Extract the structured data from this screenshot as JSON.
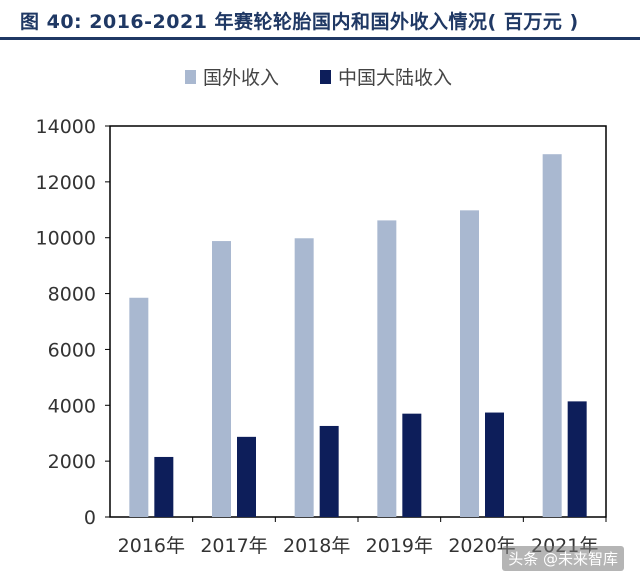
{
  "title": "图  40: 2016-2021 年赛轮轮胎国内和国外收入情况( 百万元 )",
  "watermark": "头条 @未来智库",
  "chart_data": {
    "type": "bar",
    "categories": [
      "2016年",
      "2017年",
      "2018年",
      "2019年",
      "2020年",
      "2021年"
    ],
    "series": [
      {
        "name": "国外收入",
        "values": [
          7850,
          9880,
          9980,
          10620,
          10980,
          12990
        ],
        "color": "#a9b8d0"
      },
      {
        "name": "中国大陆收入",
        "values": [
          2150,
          2870,
          3260,
          3700,
          3740,
          4140
        ],
        "color": "#0d1e5a"
      }
    ],
    "ylim": [
      0,
      14000
    ],
    "yticks": [
      0,
      2000,
      4000,
      6000,
      8000,
      10000,
      12000,
      14000
    ],
    "grid": false,
    "legend": "top"
  }
}
